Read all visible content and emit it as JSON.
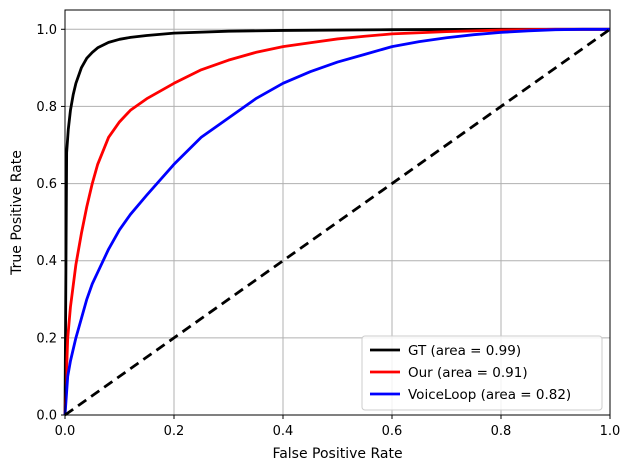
{
  "chart_data": {
    "type": "line",
    "title": "",
    "xlabel": "False Positive Rate",
    "ylabel": "True Positive Rate",
    "xlim": [
      0.0,
      1.0
    ],
    "ylim": [
      0.0,
      1.05
    ],
    "xticks": [
      "0.0",
      "0.2",
      "0.4",
      "0.6",
      "0.8",
      "1.0"
    ],
    "yticks": [
      "0.0",
      "0.2",
      "0.4",
      "0.6",
      "0.8",
      "1.0"
    ],
    "grid": true,
    "legend_position": "bottom-right",
    "series": [
      {
        "name": "GT (area = 0.99)",
        "color": "#000000",
        "x": [
          0,
          0.003,
          0.006,
          0.01,
          0.015,
          0.02,
          0.03,
          0.04,
          0.05,
          0.06,
          0.08,
          0.1,
          0.12,
          0.15,
          0.2,
          0.3,
          0.4,
          0.5,
          0.6,
          0.8,
          1.0
        ],
        "y": [
          0,
          0.68,
          0.74,
          0.79,
          0.83,
          0.86,
          0.9,
          0.925,
          0.94,
          0.952,
          0.966,
          0.974,
          0.979,
          0.984,
          0.99,
          0.995,
          0.997,
          0.998,
          0.999,
          1.0,
          1.0
        ]
      },
      {
        "name": "Our (area = 0.91)",
        "color": "#ff0000",
        "x": [
          0,
          0.005,
          0.01,
          0.02,
          0.03,
          0.04,
          0.05,
          0.06,
          0.08,
          0.1,
          0.12,
          0.15,
          0.2,
          0.25,
          0.3,
          0.35,
          0.4,
          0.45,
          0.5,
          0.55,
          0.6,
          0.7,
          0.8,
          0.9,
          1.0
        ],
        "y": [
          0,
          0.2,
          0.28,
          0.39,
          0.47,
          0.54,
          0.6,
          0.65,
          0.72,
          0.76,
          0.79,
          0.82,
          0.86,
          0.895,
          0.92,
          0.94,
          0.955,
          0.965,
          0.975,
          0.982,
          0.988,
          0.994,
          0.998,
          1.0,
          1.0
        ]
      },
      {
        "name": "VoiceLoop (area = 0.82)",
        "color": "#0000ff",
        "x": [
          0,
          0.005,
          0.01,
          0.02,
          0.03,
          0.04,
          0.05,
          0.06,
          0.08,
          0.1,
          0.12,
          0.15,
          0.2,
          0.25,
          0.3,
          0.35,
          0.4,
          0.45,
          0.5,
          0.55,
          0.6,
          0.65,
          0.7,
          0.75,
          0.8,
          0.85,
          0.9,
          0.95,
          1.0
        ],
        "y": [
          0,
          0.1,
          0.14,
          0.2,
          0.25,
          0.3,
          0.34,
          0.37,
          0.43,
          0.48,
          0.52,
          0.57,
          0.65,
          0.72,
          0.77,
          0.82,
          0.86,
          0.89,
          0.915,
          0.935,
          0.955,
          0.968,
          0.978,
          0.986,
          0.992,
          0.996,
          0.999,
          1.0,
          1.0
        ]
      },
      {
        "name": "",
        "color": "#000000",
        "dashed": true,
        "x": [
          0,
          1
        ],
        "y": [
          0,
          1
        ]
      }
    ]
  }
}
